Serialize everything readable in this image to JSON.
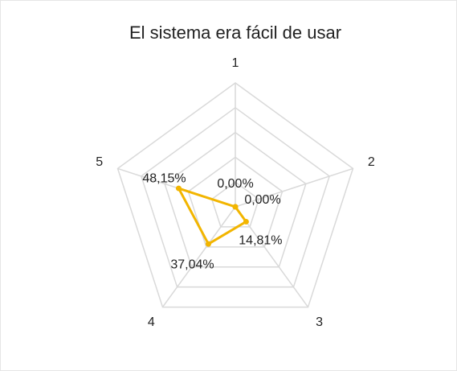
{
  "chart_data": {
    "type": "radar",
    "title": "El sistema era fácil de usar",
    "categories": [
      "1",
      "2",
      "3",
      "4",
      "5"
    ],
    "values": [
      0,
      0,
      14.81,
      37.04,
      48.15
    ],
    "value_labels": [
      "0,00%",
      "0,00%",
      "14,81%",
      "37,04%",
      "48,15%"
    ],
    "color": "#f2b500",
    "rlim": [
      0,
      100
    ],
    "rticks": [
      20,
      40,
      60,
      80,
      100
    ],
    "grid": true
  }
}
